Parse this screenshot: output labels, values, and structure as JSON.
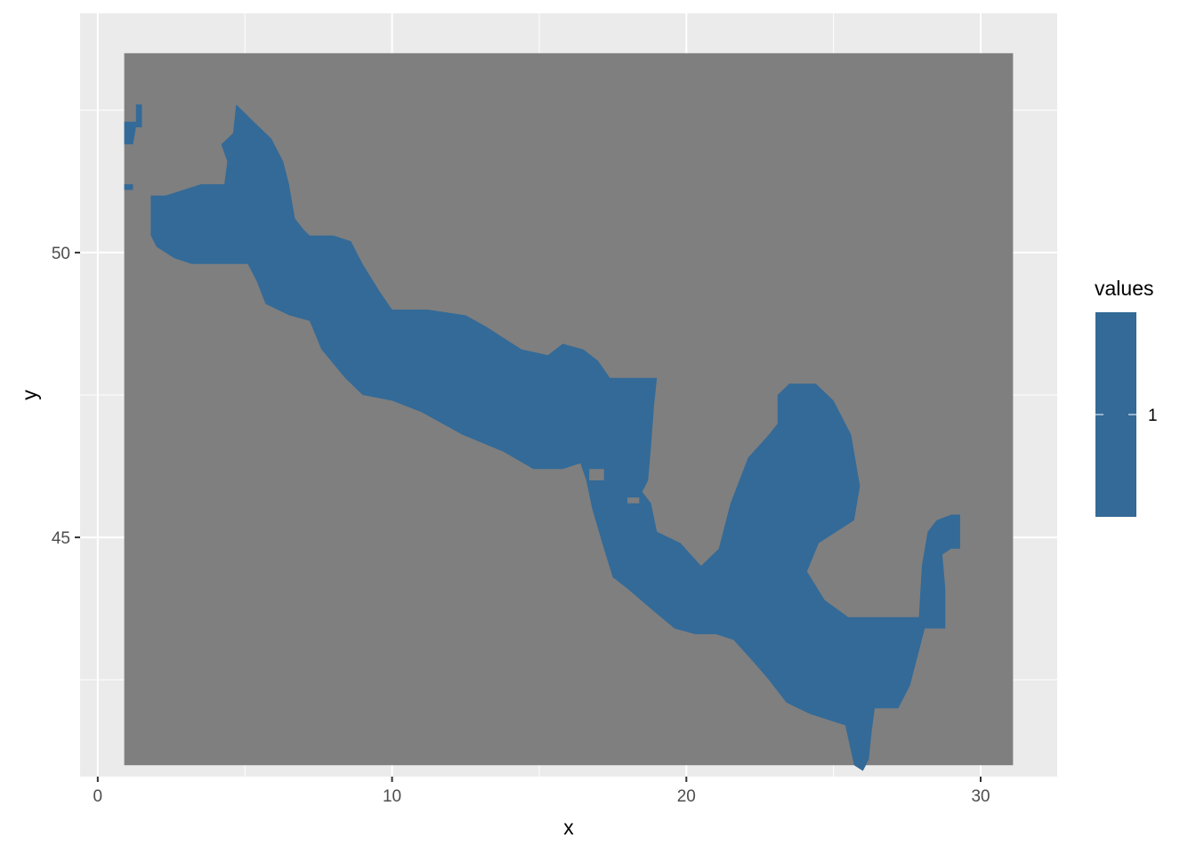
{
  "chart_data": {
    "type": "heatmap",
    "title": "",
    "xlabel": "x",
    "ylabel": "y",
    "xlim": [
      -0.6,
      32.6
    ],
    "ylim": [
      40.8,
      54.2
    ],
    "x_ticks": [
      0,
      10,
      20,
      30
    ],
    "y_ticks": [
      45,
      50
    ],
    "x_tick_labels": [
      "0",
      "10",
      "20",
      "30"
    ],
    "y_tick_labels": [
      "45",
      "50"
    ],
    "grid": true,
    "raster_extent": {
      "xmin": 0.9,
      "xmax": 31.1,
      "ymin": 41.0,
      "ymax": 53.5
    },
    "background_value_color": "#7f7f7f",
    "legend": {
      "title": "values",
      "position": "right",
      "entries": [
        {
          "label": "1",
          "value": 1,
          "color": "#336a98"
        }
      ]
    },
    "region_value": 1,
    "region_outline": [
      [
        0.9,
        52.3
      ],
      [
        1.3,
        52.3
      ],
      [
        1.3,
        52.6
      ],
      [
        1.5,
        52.6
      ],
      [
        1.5,
        52.2
      ],
      [
        1.3,
        52.2
      ],
      [
        1.2,
        51.9
      ],
      [
        0.9,
        51.9
      ],
      [
        0.9,
        52.3
      ],
      [
        4.7,
        52.6
      ],
      [
        5.3,
        52.3
      ],
      [
        5.9,
        52.0
      ],
      [
        6.3,
        51.6
      ],
      [
        6.5,
        51.2
      ],
      [
        6.7,
        50.6
      ],
      [
        7.0,
        50.4
      ],
      [
        7.2,
        50.3
      ],
      [
        8.0,
        50.3
      ],
      [
        8.6,
        50.2
      ],
      [
        9.0,
        49.8
      ],
      [
        9.6,
        49.3
      ],
      [
        10.0,
        49.0
      ],
      [
        11.2,
        49.0
      ],
      [
        12.5,
        48.9
      ],
      [
        13.2,
        48.7
      ],
      [
        13.8,
        48.5
      ],
      [
        14.4,
        48.3
      ],
      [
        15.3,
        48.2
      ],
      [
        15.8,
        48.4
      ],
      [
        16.5,
        48.3
      ],
      [
        17.0,
        48.1
      ],
      [
        17.4,
        47.8
      ],
      [
        18.3,
        47.8
      ],
      [
        19.0,
        47.8
      ],
      [
        18.9,
        47.3
      ],
      [
        18.8,
        46.6
      ],
      [
        18.7,
        46.0
      ],
      [
        18.5,
        45.8
      ],
      [
        18.8,
        45.6
      ],
      [
        19.0,
        45.1
      ],
      [
        19.8,
        44.9
      ],
      [
        20.5,
        44.5
      ],
      [
        21.1,
        44.8
      ],
      [
        21.5,
        45.6
      ],
      [
        22.1,
        46.4
      ],
      [
        22.8,
        46.8
      ],
      [
        23.1,
        47.0
      ],
      [
        23.1,
        47.5
      ],
      [
        23.5,
        47.7
      ],
      [
        24.4,
        47.7
      ],
      [
        25.0,
        47.4
      ],
      [
        25.6,
        46.8
      ],
      [
        25.9,
        45.9
      ],
      [
        25.7,
        45.3
      ],
      [
        24.5,
        44.9
      ],
      [
        24.1,
        44.4
      ],
      [
        24.7,
        43.9
      ],
      [
        25.5,
        43.6
      ],
      [
        26.3,
        43.6
      ],
      [
        27.1,
        43.6
      ],
      [
        27.9,
        43.6
      ],
      [
        28.0,
        44.5
      ],
      [
        28.2,
        45.1
      ],
      [
        28.5,
        45.3
      ],
      [
        29.0,
        45.4
      ],
      [
        29.3,
        45.4
      ],
      [
        29.3,
        44.8
      ],
      [
        29.0,
        44.8
      ],
      [
        28.7,
        44.7
      ],
      [
        28.8,
        44.1
      ],
      [
        28.8,
        43.4
      ],
      [
        28.1,
        43.4
      ],
      [
        27.8,
        42.8
      ],
      [
        27.6,
        42.4
      ],
      [
        27.2,
        42.0
      ],
      [
        26.4,
        42.0
      ],
      [
        26.3,
        41.6
      ],
      [
        26.2,
        41.1
      ],
      [
        26.0,
        40.9
      ],
      [
        25.7,
        41.0
      ],
      [
        25.4,
        41.7
      ],
      [
        24.2,
        41.9
      ],
      [
        23.4,
        42.1
      ],
      [
        22.8,
        42.5
      ],
      [
        22.3,
        42.8
      ],
      [
        21.6,
        43.2
      ],
      [
        21.0,
        43.3
      ],
      [
        20.3,
        43.3
      ],
      [
        19.6,
        43.4
      ],
      [
        18.9,
        43.7
      ],
      [
        18.0,
        44.1
      ],
      [
        17.5,
        44.3
      ],
      [
        17.2,
        44.8
      ],
      [
        16.8,
        45.5
      ],
      [
        16.6,
        46.0
      ],
      [
        16.4,
        46.3
      ],
      [
        15.8,
        46.2
      ],
      [
        14.8,
        46.2
      ],
      [
        13.8,
        46.5
      ],
      [
        12.4,
        46.8
      ],
      [
        11.0,
        47.2
      ],
      [
        10.0,
        47.4
      ],
      [
        9.0,
        47.5
      ],
      [
        8.4,
        47.8
      ],
      [
        7.6,
        48.3
      ],
      [
        7.2,
        48.8
      ],
      [
        6.5,
        48.9
      ],
      [
        5.7,
        49.1
      ],
      [
        5.4,
        49.5
      ],
      [
        5.1,
        49.8
      ],
      [
        4.1,
        49.8
      ],
      [
        3.2,
        49.8
      ],
      [
        2.6,
        49.9
      ],
      [
        2.0,
        50.1
      ],
      [
        1.8,
        50.3
      ],
      [
        1.8,
        51.0
      ],
      [
        2.3,
        51.0
      ],
      [
        2.9,
        51.1
      ],
      [
        3.5,
        51.2
      ],
      [
        4.3,
        51.2
      ],
      [
        4.4,
        51.6
      ],
      [
        4.2,
        51.9
      ],
      [
        4.6,
        52.1
      ],
      [
        4.7,
        52.6
      ]
    ],
    "region_islets": [
      [
        [
          0.9,
          51.2
        ],
        [
          1.2,
          51.2
        ],
        [
          1.2,
          51.1
        ],
        [
          0.9,
          51.1
        ]
      ]
    ],
    "region_holes": [
      [
        [
          16.7,
          46.2
        ],
        [
          17.2,
          46.2
        ],
        [
          17.2,
          46.0
        ],
        [
          16.7,
          46.0
        ]
      ],
      [
        [
          18.0,
          45.7
        ],
        [
          18.4,
          45.7
        ],
        [
          18.4,
          45.6
        ],
        [
          18.0,
          45.6
        ]
      ]
    ]
  }
}
